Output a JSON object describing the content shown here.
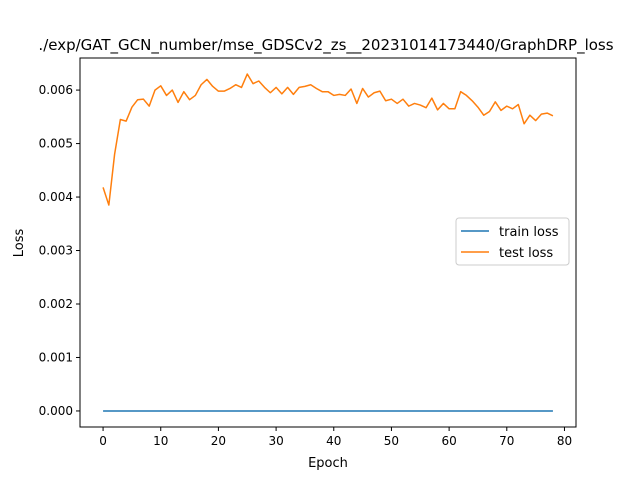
{
  "chart_data": {
    "type": "line",
    "title": "./exp/GAT_GCN_number/mse_GDSCv2_zs__20231014173440/GraphDRP_loss",
    "xlabel": "Epoch",
    "ylabel": "Loss",
    "xlim": [
      -4,
      82
    ],
    "ylim": [
      -0.0003,
      0.0066
    ],
    "xticks": [
      0,
      10,
      20,
      30,
      40,
      50,
      60,
      70,
      80
    ],
    "yticks": [
      0.0,
      0.001,
      0.002,
      0.003,
      0.004,
      0.005,
      0.006
    ],
    "ytick_labels": [
      "0.000",
      "0.001",
      "0.002",
      "0.003",
      "0.004",
      "0.005",
      "0.006"
    ],
    "legend_position": "center-right",
    "grid": false,
    "series": [
      {
        "name": "train loss",
        "color": "#1f77b4",
        "x": [
          0,
          78
        ],
        "y": [
          0.0,
          0.0
        ]
      },
      {
        "name": "test loss",
        "color": "#ff7f0e",
        "x": [
          0,
          1,
          2,
          3,
          4,
          5,
          6,
          7,
          8,
          9,
          10,
          11,
          12,
          13,
          14,
          15,
          16,
          17,
          18,
          19,
          20,
          21,
          22,
          23,
          24,
          25,
          26,
          27,
          28,
          29,
          30,
          31,
          32,
          33,
          34,
          35,
          36,
          37,
          38,
          39,
          40,
          41,
          42,
          43,
          44,
          45,
          46,
          47,
          48,
          49,
          50,
          51,
          52,
          53,
          54,
          55,
          56,
          57,
          58,
          59,
          60,
          61,
          62,
          63,
          64,
          65,
          66,
          67,
          68,
          69,
          70,
          71,
          72,
          73,
          74,
          75,
          76,
          77,
          78
        ],
        "y": [
          0.00418,
          0.00385,
          0.0048,
          0.00545,
          0.00542,
          0.00568,
          0.00582,
          0.00583,
          0.0057,
          0.006,
          0.00608,
          0.0059,
          0.006,
          0.00577,
          0.00597,
          0.00582,
          0.0059,
          0.0061,
          0.0062,
          0.00607,
          0.00598,
          0.00598,
          0.00603,
          0.0061,
          0.00605,
          0.0063,
          0.00612,
          0.00617,
          0.00605,
          0.00595,
          0.00605,
          0.00593,
          0.00605,
          0.00592,
          0.00605,
          0.00607,
          0.0061,
          0.00603,
          0.00597,
          0.00597,
          0.0059,
          0.00592,
          0.0059,
          0.00602,
          0.00575,
          0.00603,
          0.00587,
          0.00595,
          0.00598,
          0.0058,
          0.00583,
          0.00575,
          0.00583,
          0.0057,
          0.00575,
          0.00572,
          0.00567,
          0.00585,
          0.00563,
          0.00575,
          0.00565,
          0.00565,
          0.00597,
          0.0059,
          0.0058,
          0.00568,
          0.00553,
          0.0056,
          0.00578,
          0.00562,
          0.0057,
          0.00565,
          0.00573,
          0.00537,
          0.00553,
          0.00543,
          0.00555,
          0.00557,
          0.00552
        ]
      }
    ]
  }
}
